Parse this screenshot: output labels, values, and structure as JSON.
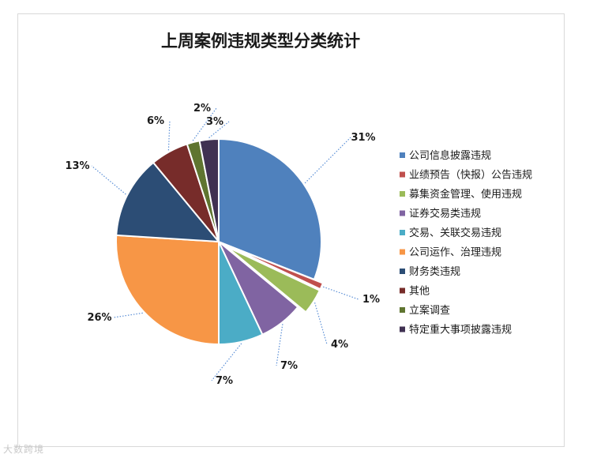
{
  "watermark": "大数跨境",
  "chart_data": {
    "type": "pie",
    "title": "上周案例违规类型分类统计",
    "legend_position": "right",
    "slices": [
      {
        "label": "公司信息披露违规",
        "value": 31,
        "pct_label": "31%",
        "color": "#4F81BD",
        "exploded": false
      },
      {
        "label": "业绩预告（快报）公告违规",
        "value": 1,
        "pct_label": "1%",
        "color": "#C0504D",
        "exploded": true
      },
      {
        "label": "募集资金管理、使用违规",
        "value": 4,
        "pct_label": "4%",
        "color": "#9BBB59",
        "exploded": true
      },
      {
        "label": "证券交易类违规",
        "value": 7,
        "pct_label": "7%",
        "color": "#8064A2",
        "exploded": false
      },
      {
        "label": "交易、关联交易违规",
        "value": 7,
        "pct_label": "7%",
        "color": "#4BACC6",
        "exploded": false
      },
      {
        "label": "公司运作、治理违规",
        "value": 26,
        "pct_label": "26%",
        "color": "#F79646",
        "exploded": false
      },
      {
        "label": "财务类违规",
        "value": 13,
        "pct_label": "13%",
        "color": "#2C4D75",
        "exploded": false
      },
      {
        "label": "其他",
        "value": 6,
        "pct_label": "6%",
        "color": "#772C2A",
        "exploded": false
      },
      {
        "label": "立案调查",
        "value": 2,
        "pct_label": "2%",
        "color": "#5F7530",
        "exploded": false
      },
      {
        "label": "特定重大事项披露违规",
        "value": 3,
        "pct_label": "3%",
        "color": "#403152",
        "exploded": false
      }
    ]
  }
}
